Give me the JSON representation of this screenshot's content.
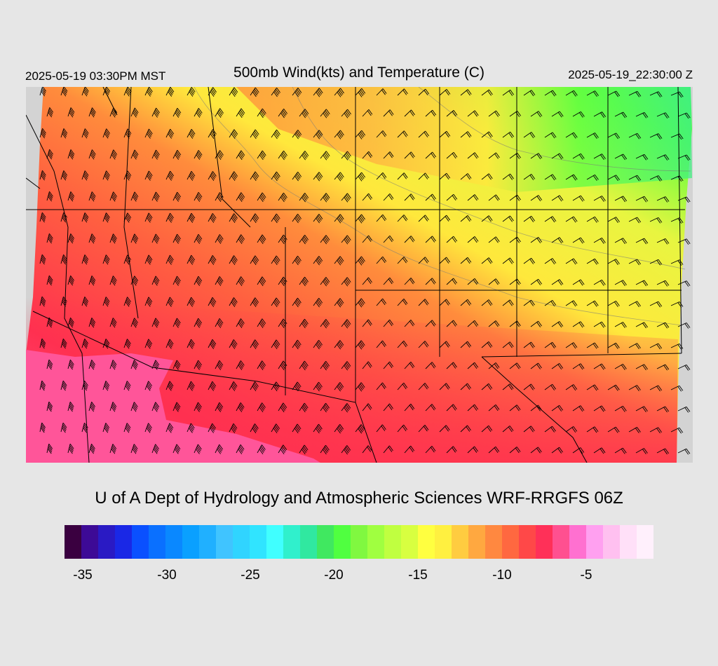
{
  "header": {
    "local_time": "2025-05-19 03:30PM MST",
    "title": "500mb Wind(kts) and Temperature (C)",
    "valid_time": "2025-05-19_22:30:00 Z"
  },
  "credit": "U of A Dept of Hydrology and Atmospheric Sciences WRF-RRGFS 06Z",
  "colorbar": {
    "colors": [
      "#3a0040",
      "#3d0a96",
      "#2a1ac4",
      "#1a28e6",
      "#0a50ff",
      "#0a70ff",
      "#0a88ff",
      "#0aa0ff",
      "#20b0ff",
      "#40c4ff",
      "#30d4ff",
      "#30e4ff",
      "#40ffff",
      "#30f0cc",
      "#30e8a0",
      "#40e860",
      "#50ff40",
      "#80f840",
      "#a0ff40",
      "#c0ff40",
      "#d8ff40",
      "#ffff40",
      "#fff040",
      "#ffcc40",
      "#ffa840",
      "#ff8840",
      "#ff6840",
      "#ff4848",
      "#ff3058",
      "#ff5090",
      "#ff70d0",
      "#ffa0f0",
      "#ffc0f0",
      "#ffe0f8",
      "#fff0fc"
    ],
    "tick_labels": [
      "-35",
      "-30",
      "-25",
      "-20",
      "-15",
      "-10",
      "-5"
    ]
  },
  "map_colors": {
    "pink": "#ff5599",
    "red": "#ff3050",
    "orange_red": "#ff6040",
    "orange": "#ff8c3c",
    "amber": "#ffb040",
    "yellow": "#ffe83c",
    "yellow_green": "#e8f540",
    "green": "#60ff40",
    "cyan_green": "#40f080",
    "nodata": "#d3d3d3"
  }
}
